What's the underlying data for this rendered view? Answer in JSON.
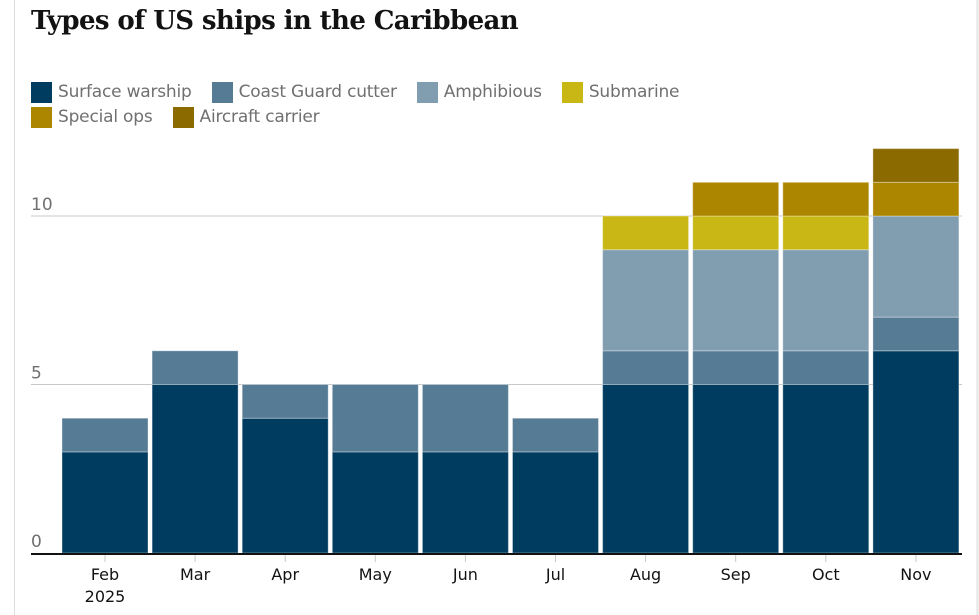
{
  "title": "Types of US ships in the Caribbean",
  "legend": [
    {
      "label": "Surface warship",
      "color": "#003c60"
    },
    {
      "label": "Coast Guard cutter",
      "color": "#557b95"
    },
    {
      "label": "Amphibious",
      "color": "#819db0"
    },
    {
      "label": "Submarine",
      "color": "#c8b714"
    },
    {
      "label": "Special ops",
      "color": "#ad8600"
    },
    {
      "label": "Aircraft carrier",
      "color": "#8b6a00"
    }
  ],
  "chart_data": {
    "type": "bar",
    "stacked": true,
    "title": "Types of US ships in the Caribbean",
    "xlabel": "",
    "ylabel": "",
    "categories": [
      "Feb",
      "Mar",
      "Apr",
      "May",
      "Jun",
      "Jul",
      "Aug",
      "Sep",
      "Oct",
      "Nov"
    ],
    "category_sublabels": [
      "2025",
      "",
      "",
      "",
      "",
      "",
      "",
      "",
      "",
      ""
    ],
    "series": [
      {
        "name": "Surface warship",
        "color": "#003c60",
        "values": [
          3,
          5,
          4,
          3,
          3,
          3,
          5,
          5,
          5,
          6
        ]
      },
      {
        "name": "Coast Guard cutter",
        "color": "#557b95",
        "values": [
          1,
          1,
          1,
          2,
          2,
          1,
          1,
          1,
          1,
          1
        ]
      },
      {
        "name": "Amphibious",
        "color": "#819db0",
        "values": [
          0,
          0,
          0,
          0,
          0,
          0,
          3,
          3,
          3,
          3
        ]
      },
      {
        "name": "Submarine",
        "color": "#c8b714",
        "values": [
          0,
          0,
          0,
          0,
          0,
          0,
          1,
          1,
          1,
          0
        ]
      },
      {
        "name": "Special ops",
        "color": "#ad8600",
        "values": [
          0,
          0,
          0,
          0,
          0,
          0,
          0,
          1,
          1,
          1
        ]
      },
      {
        "name": "Aircraft carrier",
        "color": "#8b6a00",
        "values": [
          0,
          0,
          0,
          0,
          0,
          0,
          0,
          0,
          0,
          1
        ]
      }
    ],
    "yticks": [
      0,
      5,
      10
    ],
    "ylim": [
      0,
      12
    ],
    "grid": true,
    "legend_position": "top-left"
  }
}
